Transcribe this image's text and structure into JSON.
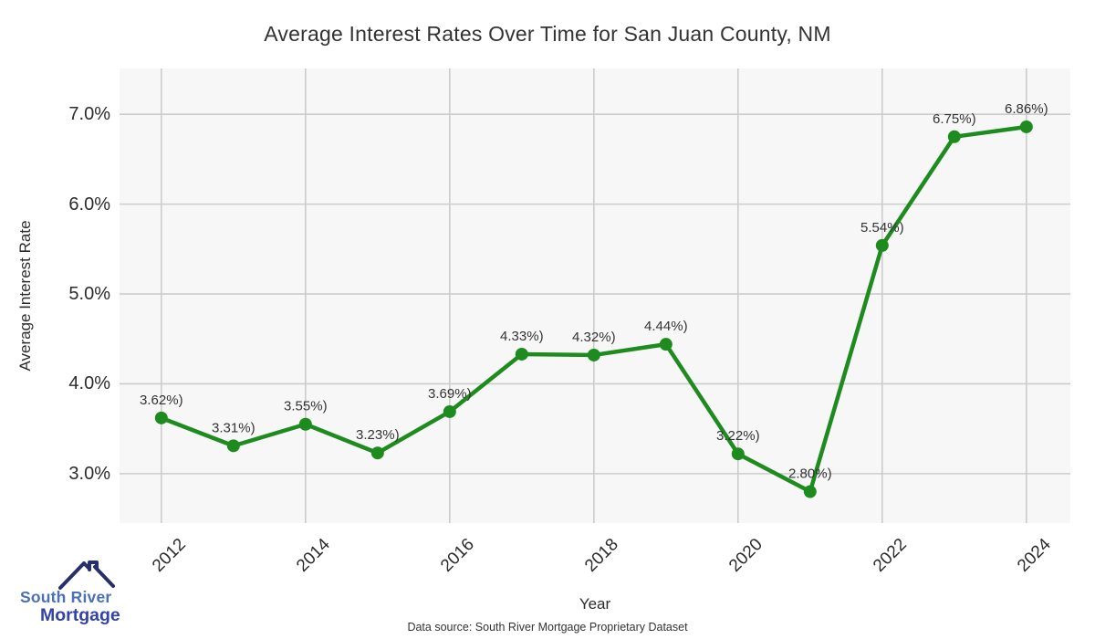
{
  "title": "Average Interest Rates Over Time for San Juan County, NM",
  "chart_data": {
    "type": "line",
    "title": "Average Interest Rates Over Time for San Juan County, NM",
    "xlabel": "Year",
    "ylabel": "Average Interest Rate",
    "x": [
      2012,
      2013,
      2014,
      2015,
      2016,
      2017,
      2018,
      2019,
      2020,
      2021,
      2022,
      2023,
      2024
    ],
    "values": [
      3.62,
      3.31,
      3.55,
      3.23,
      3.69,
      4.33,
      4.32,
      4.44,
      3.22,
      2.8,
      5.54,
      6.75,
      6.86
    ],
    "point_labels": [
      "3.62%)",
      "3.31%)",
      "3.55%)",
      "3.23%)",
      "3.69%)",
      "4.33%)",
      "4.32%)",
      "4.44%)",
      "3.22%)",
      "2.80%)",
      "5.54%)",
      "6.75%)",
      "6.86%)"
    ],
    "x_ticks": [
      2012,
      2014,
      2016,
      2018,
      2020,
      2022,
      2024
    ],
    "y_ticks": [
      "3.0%",
      "4.0%",
      "5.0%",
      "6.0%",
      "7.0%"
    ],
    "y_tick_values": [
      3.0,
      4.0,
      5.0,
      6.0,
      7.0
    ],
    "xlim": [
      2011.42,
      2024.61
    ],
    "ylim": [
      2.45,
      7.51
    ],
    "grid": true,
    "legend": "none",
    "line_color": "#1e8b1e",
    "marker_color": "#1e8b1e",
    "plot_bg_color": "#f7f7f7",
    "grid_color": "#cccccc",
    "label_color": "#333333",
    "tick_color": "#2b2b2b"
  },
  "footer": {
    "source": "Data source: South River Mortgage Proprietary Dataset"
  },
  "logo": {
    "line1": "South River",
    "line2": "Mortgage"
  }
}
